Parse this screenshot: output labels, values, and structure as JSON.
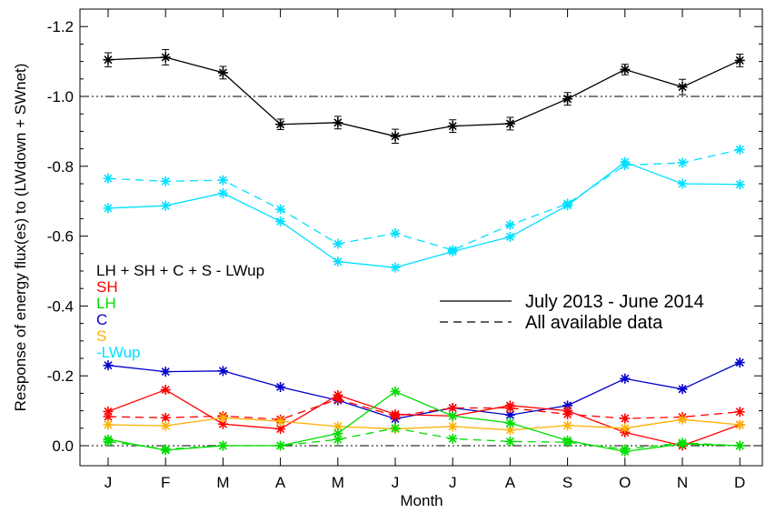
{
  "chart_data": {
    "type": "line",
    "title": "",
    "xlabel": "Month",
    "ylabel": "Response of energy flux(es) to (LWdown + SWnet)",
    "categories": [
      "J",
      "F",
      "M",
      "A",
      "M",
      "J",
      "J",
      "A",
      "S",
      "O",
      "N",
      "D"
    ],
    "ylim": [
      0.05,
      -1.25
    ],
    "y_axis_reversed": true,
    "yticks": [
      -1.2,
      -1.0,
      -0.8,
      -0.6,
      -0.4,
      -0.2,
      0.0
    ],
    "ytick_labels": [
      "-1.2",
      "-1.0",
      "-0.8",
      "-0.6",
      "-0.4",
      "-0.2",
      "0.0"
    ],
    "reference_lines": [
      {
        "y": -1.0,
        "style": "dash-dot-dot"
      },
      {
        "y": 0.0,
        "style": "dash-dot-dot"
      }
    ],
    "series_labels": [
      {
        "text": "LH + SH + C + S - LWup",
        "color": "#000000"
      },
      {
        "text": "SH",
        "color": "#ff0000"
      },
      {
        "text": "LH",
        "color": "#00dd00"
      },
      {
        "text": "C",
        "color": "#0000cc"
      },
      {
        "text": "S",
        "color": "#ffb000"
      },
      {
        "text": "-LWup",
        "color": "#00e0ff"
      }
    ],
    "legend": {
      "position": "right-middle",
      "entries": [
        {
          "label": "July 2013 - June 2014",
          "style": "solid"
        },
        {
          "label": "All available data",
          "style": "dashed"
        }
      ]
    },
    "series": [
      {
        "key": "total",
        "color": "#000000",
        "style": "solid",
        "error_bars": true,
        "values": [
          -1.105,
          -1.112,
          -1.068,
          -0.92,
          -0.925,
          -0.886,
          -0.915,
          -0.922,
          -0.993,
          -1.077,
          -1.027,
          -1.103
        ],
        "errors": [
          0.02,
          0.022,
          0.018,
          0.015,
          0.018,
          0.02,
          0.018,
          0.018,
          0.018,
          0.015,
          0.022,
          0.018
        ]
      },
      {
        "key": "lwup_all",
        "color": "#00e0ff",
        "style": "dashed",
        "values": [
          -0.765,
          -0.757,
          -0.76,
          -0.677,
          -0.578,
          -0.608,
          -0.56,
          -0.632,
          -0.693,
          -0.803,
          -0.81,
          -0.848
        ]
      },
      {
        "key": "lwup_period",
        "color": "#00e0ff",
        "style": "solid",
        "values": [
          -0.68,
          -0.687,
          -0.723,
          -0.642,
          -0.527,
          -0.51,
          -0.556,
          -0.598,
          -0.688,
          -0.812,
          -0.75,
          -0.748
        ]
      },
      {
        "key": "c_period",
        "color": "#0000cc",
        "style": "solid",
        "values": [
          -0.23,
          -0.212,
          -0.214,
          -0.168,
          -0.13,
          -0.077,
          -0.108,
          -0.088,
          -0.115,
          -0.192,
          -0.162,
          -0.238
        ]
      },
      {
        "key": "sh_period",
        "color": "#ff0000",
        "style": "solid",
        "values": [
          -0.098,
          -0.16,
          -0.062,
          -0.048,
          -0.145,
          -0.09,
          -0.085,
          -0.115,
          -0.1,
          -0.038,
          0.0,
          -0.06
        ]
      },
      {
        "key": "sh_all",
        "color": "#ff0000",
        "style": "dashed",
        "values": [
          -0.083,
          -0.08,
          -0.085,
          -0.075,
          -0.133,
          -0.085,
          -0.108,
          -0.108,
          -0.09,
          -0.078,
          -0.082,
          -0.097
        ]
      },
      {
        "key": "s_period",
        "color": "#ffb000",
        "style": "solid",
        "values": [
          -0.06,
          -0.057,
          -0.08,
          -0.07,
          -0.055,
          -0.048,
          -0.055,
          -0.045,
          -0.058,
          -0.05,
          -0.075,
          -0.06
        ]
      },
      {
        "key": "lh_period",
        "color": "#00dd00",
        "style": "solid",
        "values": [
          -0.018,
          0.013,
          0.0,
          0.0,
          -0.035,
          -0.155,
          -0.085,
          -0.065,
          -0.015,
          0.017,
          -0.005,
          0.0
        ]
      },
      {
        "key": "lh_all",
        "color": "#00dd00",
        "style": "dashed",
        "values": [
          -0.012,
          0.01,
          0.0,
          0.0,
          -0.018,
          -0.05,
          -0.02,
          -0.012,
          -0.01,
          0.01,
          -0.008,
          0.0
        ]
      }
    ]
  }
}
